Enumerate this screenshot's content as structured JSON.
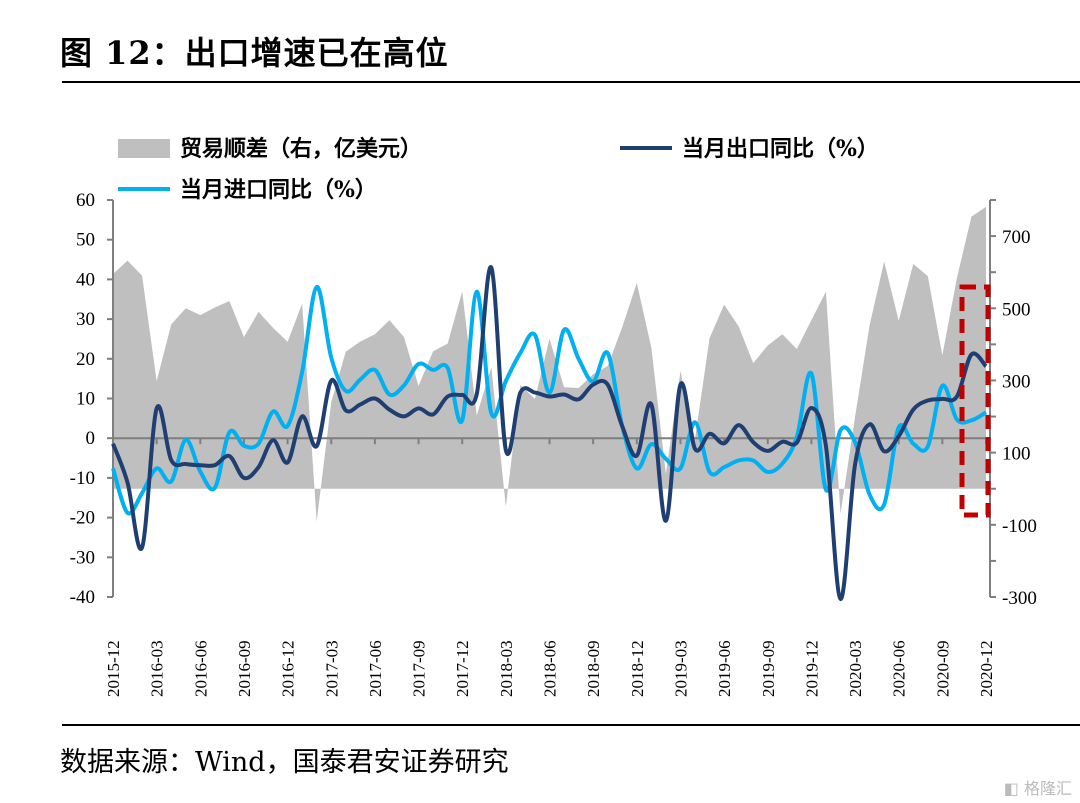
{
  "title": "图 12：出口增速已在高位",
  "source": "数据来源：Wind，国泰君安证券研究",
  "watermark": "格隆汇",
  "colors": {
    "area": "#bfbfbf",
    "export": "#1f3f73",
    "import": "#00b0f0",
    "highlight": "#c00000",
    "axis": "#7f7f7f"
  },
  "chart_data": {
    "type": "line+area",
    "title": "图 12：出口增速已在高位",
    "x": [
      "2015-12",
      "2016-01",
      "2016-02",
      "2016-03",
      "2016-04",
      "2016-05",
      "2016-06",
      "2016-07",
      "2016-08",
      "2016-09",
      "2016-10",
      "2016-11",
      "2016-12",
      "2017-01",
      "2017-02",
      "2017-03",
      "2017-04",
      "2017-05",
      "2017-06",
      "2017-07",
      "2017-08",
      "2017-09",
      "2017-10",
      "2017-11",
      "2017-12",
      "2018-01",
      "2018-02",
      "2018-03",
      "2018-04",
      "2018-05",
      "2018-06",
      "2018-07",
      "2018-08",
      "2018-09",
      "2018-10",
      "2018-11",
      "2018-12",
      "2019-01",
      "2019-02",
      "2019-03",
      "2019-04",
      "2019-05",
      "2019-06",
      "2019-07",
      "2019-08",
      "2019-09",
      "2019-10",
      "2019-11",
      "2019-12",
      "2020-01",
      "2020-02",
      "2020-03",
      "2020-04",
      "2020-05",
      "2020-06",
      "2020-07",
      "2020-08",
      "2020-09",
      "2020-10",
      "2020-11",
      "2020-12"
    ],
    "xtick_labels": [
      "2015-12",
      "2016-03",
      "2016-06",
      "2016-09",
      "2016-12",
      "2017-03",
      "2017-06",
      "2017-09",
      "2017-12",
      "2018-03",
      "2018-06",
      "2018-09",
      "2018-12",
      "2019-03",
      "2019-06",
      "2019-09",
      "2019-12",
      "2020-03",
      "2020-06",
      "2020-09",
      "2020-12"
    ],
    "left_axis": {
      "ylim": [
        -40,
        60
      ],
      "ticks": [
        "60",
        "50",
        "40",
        "30",
        "20",
        "10",
        "0",
        "-10",
        "-20",
        "-30",
        "-40"
      ]
    },
    "right_axis": {
      "ylim": [
        -300,
        800
      ],
      "ticks": [
        "700",
        "500",
        "300",
        "100",
        "-100",
        "-300"
      ]
    },
    "legend": [
      "贸易顺差（右，亿美元）",
      "当月出口同比（%）",
      "当月进口同比（%）"
    ],
    "series": [
      {
        "name": "贸易顺差（右，亿美元）",
        "axis": "right",
        "kind": "area",
        "values": [
          595,
          632,
          590,
          298,
          455,
          500,
          481,
          502,
          520,
          420,
          490,
          446,
          407,
          513,
          -91,
          240,
          380,
          408,
          428,
          467,
          420,
          285,
          381,
          402,
          547,
          203,
          337,
          -50,
          287,
          249,
          416,
          281,
          279,
          317,
          340,
          448,
          570,
          391,
          41,
          326,
          138,
          417,
          510,
          450,
          348,
          397,
          428,
          387,
          467,
          546,
          -70,
          199,
          453,
          630,
          465,
          623,
          589,
          370,
          584,
          754,
          781
        ]
      },
      {
        "name": "当月出口同比（%）",
        "axis": "left",
        "kind": "line",
        "values": [
          -1.4,
          -11.2,
          -27.5,
          7.5,
          -5.5,
          -6.5,
          -6.8,
          -6.8,
          -4.5,
          -10.0,
          -7.3,
          -0.5,
          -6.1,
          5.5,
          -2.0,
          14.5,
          7.0,
          8.5,
          10.0,
          7.2,
          5.5,
          7.5,
          6.0,
          10.5,
          10.9,
          11.1,
          43.0,
          -3.0,
          11.5,
          11.5,
          10.5,
          11.0,
          9.8,
          13.5,
          13.5,
          3.0,
          -4.4,
          8.5,
          -20.8,
          13.5,
          -2.7,
          1.1,
          -1.3,
          3.3,
          -1.0,
          -3.2,
          -0.9,
          -1.1,
          7.6,
          -2.0,
          -40.5,
          -6.6,
          3.5,
          -3.3,
          0.5,
          7.2,
          9.5,
          9.9,
          10.5,
          21.1,
          18.1
        ]
      },
      {
        "name": "当月进口同比（%）",
        "axis": "left",
        "kind": "line",
        "values": [
          -7.6,
          -18.8,
          -13.8,
          -7.6,
          -10.9,
          -0.4,
          -8.4,
          -12.5,
          1.5,
          -1.9,
          -1.4,
          6.7,
          3.1,
          16.7,
          38.1,
          20.3,
          11.9,
          14.8,
          17.2,
          11.0,
          13.3,
          18.7,
          17.2,
          17.7,
          4.5,
          36.9,
          6.3,
          14.4,
          21.5,
          26.0,
          11.5,
          27.3,
          20.0,
          14.3,
          21.4,
          3.0,
          -7.6,
          -1.5,
          -5.2,
          -7.6,
          4.0,
          -8.5,
          -7.3,
          -5.6,
          -5.6,
          -8.5,
          -6.4,
          0.3,
          16.3,
          -13.0,
          2.0,
          -1.0,
          -14.2,
          -16.7,
          2.7,
          -1.4,
          -2.1,
          13.2,
          4.7,
          4.5,
          6.5
        ]
      }
    ],
    "highlight": {
      "from": "2020-11",
      "to": "2020-12",
      "style": "red dashed box"
    },
    "grid": false,
    "legend_position": "top"
  }
}
